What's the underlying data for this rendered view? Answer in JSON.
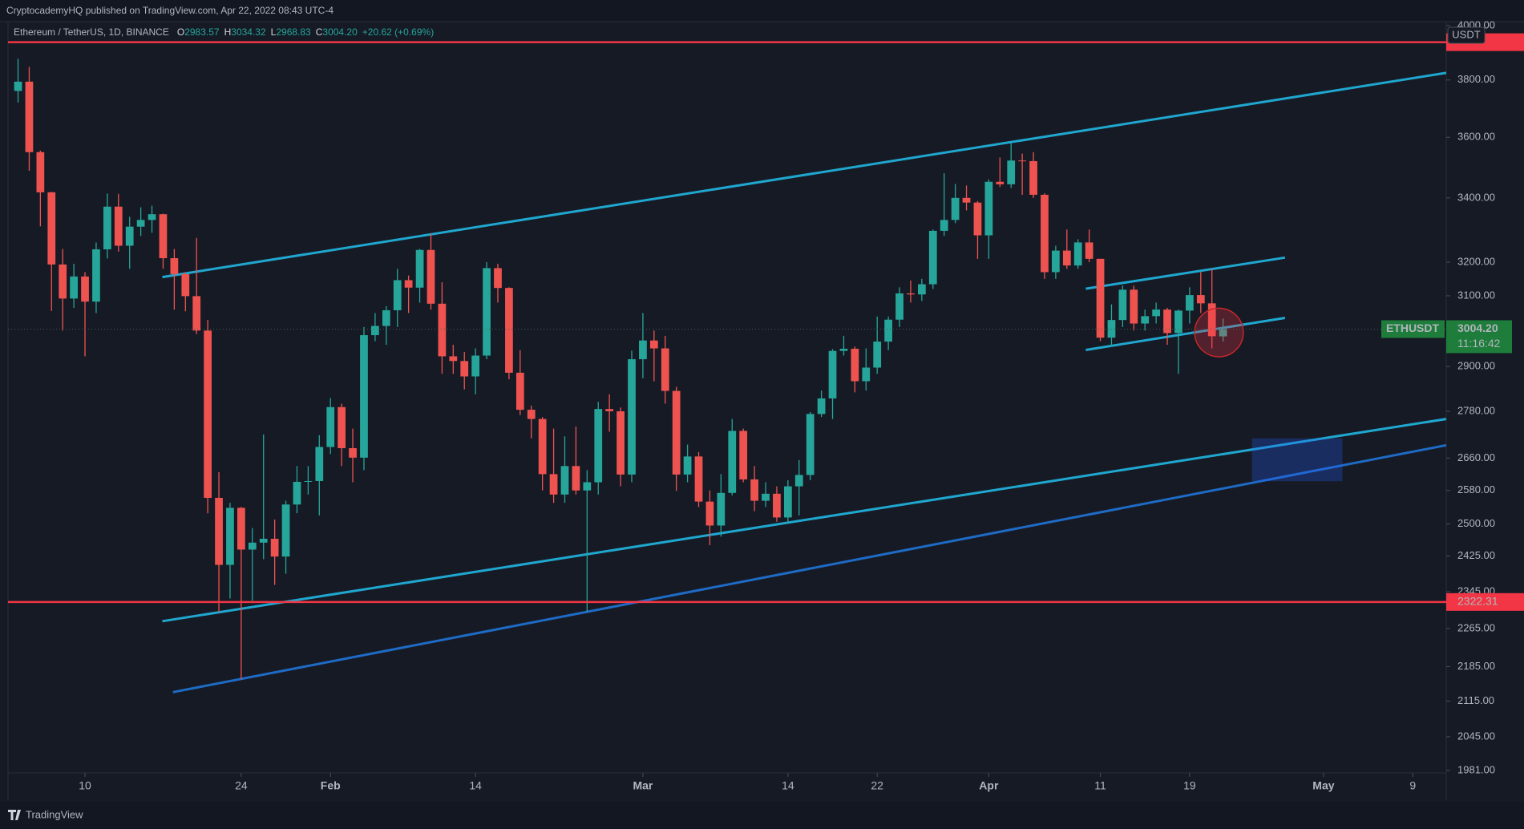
{
  "header": {
    "published": "CryptocademyHQ published on TradingView.com, Apr 22, 2022 08:43 UTC-4"
  },
  "footer": {
    "brand": "TradingView"
  },
  "chart_data": {
    "type": "candlestick",
    "title": "Ethereum / TetherUS, 1D, BINANCE",
    "legend_values": [
      {
        "key": "O",
        "value": "2983.57"
      },
      {
        "key": "H",
        "value": "3034.32"
      },
      {
        "key": "L",
        "value": "2968.83"
      },
      {
        "key": "C",
        "value": "3004.20"
      }
    ],
    "change": "+20.62 (+0.69%)",
    "currency": "USDT",
    "log_scale": true,
    "grid": false,
    "up_color": "#26a69a",
    "down_color": "#ef5350",
    "x": [
      4,
      5,
      6,
      7,
      8,
      9,
      10,
      11,
      12,
      13,
      14,
      15,
      16,
      17,
      18,
      19,
      20,
      21,
      22,
      23,
      24,
      25,
      26,
      27,
      28,
      29,
      30,
      31,
      32,
      33,
      34,
      35,
      36,
      37,
      38,
      39,
      40,
      41,
      42,
      43,
      44,
      45,
      46,
      47,
      48,
      49,
      50,
      51,
      52,
      53,
      54,
      55,
      56,
      57,
      58,
      59,
      60,
      61,
      62,
      63,
      64,
      65,
      66,
      67,
      68,
      69,
      70,
      71,
      72,
      73,
      74,
      75,
      76,
      77,
      78,
      79,
      80,
      81,
      82,
      83,
      84,
      85,
      86,
      87,
      88,
      89,
      90,
      91,
      92,
      93,
      94,
      95,
      96,
      97,
      98,
      99,
      100,
      101,
      102,
      103,
      104,
      105,
      106,
      107,
      108,
      109,
      110,
      111,
      112
    ],
    "open": [
      3761,
      3794,
      3550,
      3418,
      3193,
      3092,
      3157,
      3083,
      3239,
      3372,
      3250,
      3309,
      3330,
      3348,
      3212,
      3164,
      3099,
      3000,
      2562,
      2405,
      2538,
      2440,
      2456,
      2465,
      2424,
      2546,
      2601,
      2603,
      2688,
      2791,
      2685,
      2661,
      2987,
      3013,
      3058,
      3146,
      3124,
      3237,
      3077,
      2928,
      2915,
      2873,
      2930,
      3182,
      3123,
      2883,
      2784,
      2760,
      2620,
      2570,
      2640,
      2580,
      2600,
      2786,
      2780,
      2619,
      2920,
      2972,
      2950,
      2834,
      2619,
      2664,
      2553,
      2496,
      2574,
      2729,
      2607,
      2555,
      2572,
      2515,
      2590,
      2618,
      2773,
      2814,
      2943,
      2949,
      2860,
      2897,
      2969,
      3031,
      3107,
      3104,
      3134,
      3296,
      3330,
      3400,
      3385,
      3282,
      3452,
      3444,
      3522,
      3520,
      3410,
      3170,
      3235,
      3190,
      3260,
      3210,
      2980,
      3030,
      3118,
      3020,
      3041,
      3060,
      2993,
      3057,
      3102,
      3078,
      2983.57
    ],
    "high": [
      3877,
      3847,
      3555,
      3420,
      3240,
      3195,
      3170,
      3260,
      3414,
      3413,
      3340,
      3370,
      3375,
      3350,
      3240,
      3170,
      3274,
      3030,
      2625,
      2550,
      2540,
      2490,
      2720,
      2510,
      2555,
      2640,
      2640,
      2718,
      2815,
      2800,
      2735,
      3010,
      3050,
      3070,
      3180,
      3160,
      3240,
      3287,
      3140,
      2960,
      2940,
      2950,
      3200,
      3195,
      3125,
      2945,
      2795,
      2765,
      2735,
      2715,
      2740,
      2630,
      2805,
      2825,
      2790,
      2944,
      3050,
      3000,
      2985,
      2845,
      2694,
      2675,
      2580,
      2620,
      2760,
      2735,
      2640,
      2600,
      2590,
      2605,
      2655,
      2778,
      2835,
      2948,
      2985,
      2955,
      2950,
      3040,
      3040,
      3125,
      3145,
      3150,
      3300,
      3480,
      3445,
      3440,
      3390,
      3460,
      3532,
      3580,
      3545,
      3550,
      3415,
      3250,
      3300,
      3270,
      3300,
      3210,
      3075,
      3130,
      3130,
      3060,
      3080,
      3065,
      3060,
      3125,
      3170,
      3180,
      3034.32
    ],
    "low": [
      3720,
      3488,
      3310,
      3056,
      3000,
      3065,
      2928,
      3050,
      3211,
      3232,
      3180,
      3280,
      3290,
      3180,
      3060,
      3055,
      2990,
      2525,
      2300,
      2330,
      2159,
      2325,
      2418,
      2360,
      2385,
      2525,
      2570,
      2520,
      2670,
      2640,
      2600,
      2630,
      2970,
      2960,
      3010,
      3050,
      3080,
      3060,
      2880,
      2880,
      2838,
      2825,
      2920,
      3080,
      2865,
      2770,
      2710,
      2580,
      2550,
      2550,
      2570,
      2300,
      2570,
      2727,
      2590,
      2600,
      2868,
      2860,
      2800,
      2579,
      2600,
      2540,
      2450,
      2470,
      2568,
      2600,
      2530,
      2540,
      2505,
      2500,
      2520,
      2605,
      2765,
      2760,
      2930,
      2830,
      2835,
      2880,
      2945,
      3010,
      3080,
      3085,
      3120,
      3280,
      3320,
      3360,
      3210,
      3210,
      3435,
      3432,
      3410,
      3400,
      3150,
      3150,
      3180,
      3180,
      3200,
      2970,
      2955,
      3010,
      3000,
      3000,
      3020,
      2960,
      2880,
      3020,
      3050,
      2950,
      2968.83
    ],
    "close": [
      3794,
      3550,
      3418,
      3193,
      3092,
      3157,
      3083,
      3239,
      3372,
      3250,
      3309,
      3330,
      3348,
      3212,
      3164,
      3099,
      3000,
      2562,
      2405,
      2538,
      2440,
      2456,
      2465,
      2424,
      2546,
      2601,
      2603,
      2688,
      2791,
      2685,
      2661,
      2987,
      3013,
      3058,
      3146,
      3124,
      3237,
      3077,
      2928,
      2915,
      2873,
      2930,
      3182,
      3123,
      2883,
      2784,
      2760,
      2620,
      2570,
      2640,
      2580,
      2600,
      2786,
      2780,
      2619,
      2920,
      2972,
      2950,
      2834,
      2619,
      2664,
      2553,
      2496,
      2574,
      2729,
      2607,
      2555,
      2572,
      2515,
      2590,
      2618,
      2773,
      2814,
      2943,
      2949,
      2860,
      2897,
      2969,
      3031,
      3107,
      3104,
      3134,
      3296,
      3330,
      3400,
      3385,
      3282,
      3452,
      3444,
      3522,
      3520,
      3410,
      3170,
      3235,
      3190,
      3260,
      3210,
      2980,
      3030,
      3118,
      3020,
      3041,
      3060,
      2993,
      3057,
      3102,
      3078,
      2984,
      3004.2
    ],
    "xlim": [
      3.1,
      132
    ],
    "xticks": [
      10,
      24,
      {
        "value": 32,
        "label": "Feb"
      },
      {
        "value": 45,
        "label": "14"
      },
      {
        "value": 60,
        "label": "Mar"
      },
      {
        "value": 73,
        "label": "14"
      },
      {
        "value": 81,
        "label": "22"
      },
      {
        "value": 91,
        "label": "Apr"
      },
      {
        "value": 101,
        "label": "11"
      },
      {
        "value": 109,
        "label": "19"
      },
      {
        "value": 121,
        "label": "May"
      },
      {
        "value": 129,
        "label": "9"
      }
    ],
    "ylim": [
      1981,
      4015
    ],
    "yticks": [
      {
        "value": 4000,
        "label": "4000.00"
      },
      {
        "value": 3800,
        "label": "3800.00"
      },
      {
        "value": 3600,
        "label": "3600.00"
      },
      {
        "value": 3400,
        "label": "3400.00"
      },
      {
        "value": 3200,
        "label": "3200.00"
      },
      {
        "value": 3100,
        "label": "3100.00"
      },
      {
        "value": 2900,
        "label": "2900.00"
      },
      {
        "value": 2780,
        "label": "2780.00"
      },
      {
        "value": 2660,
        "label": "2660.00"
      },
      {
        "value": 2580,
        "label": "2580.00"
      },
      {
        "value": 2500,
        "label": "2500.00"
      },
      {
        "value": 2425,
        "label": "2425.00"
      },
      {
        "value": 2345,
        "label": "2345.00"
      },
      {
        "value": 2265,
        "label": "2265.00"
      },
      {
        "value": 2185,
        "label": "2185.00"
      },
      {
        "value": 2115,
        "label": "2115.00"
      },
      {
        "value": 2045,
        "label": "2045.00"
      },
      {
        "value": 1981,
        "label": "1981.00"
      }
    ],
    "levels": [
      {
        "value": 3938,
        "color": "#f23645"
      },
      {
        "value": 2322.31,
        "color": "#f23645"
      }
    ],
    "last_price": {
      "symbol": "ETHUSDT",
      "value": 3004.2,
      "label": "3004.20",
      "countdown": "11:16:42",
      "color": "#1e7d3a"
    }
  }
}
